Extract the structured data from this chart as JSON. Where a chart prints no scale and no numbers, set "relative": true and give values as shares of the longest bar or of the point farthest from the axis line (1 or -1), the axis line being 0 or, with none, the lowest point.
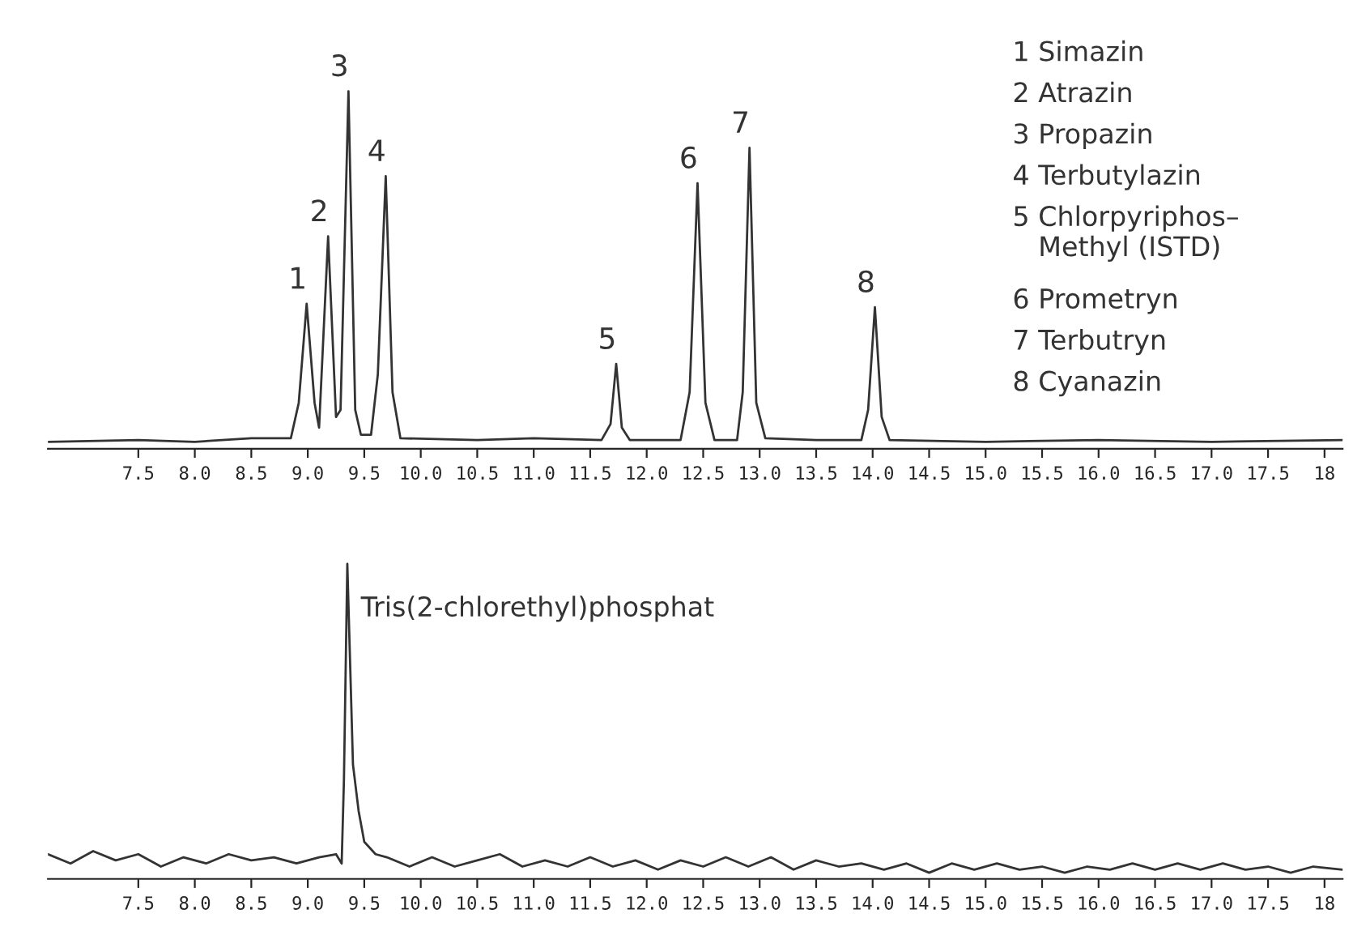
{
  "chart_data": [
    {
      "type": "line",
      "relative": true,
      "grid": false,
      "legend": false,
      "marker": "none",
      "line_style": "solid",
      "tick_labels": "x",
      "xlim": [
        6.7,
        18.16
      ],
      "xticks": [
        7.5,
        {
          "value": 8,
          "label": "8.0"
        },
        8.5,
        {
          "value": 9,
          "label": "9.0"
        },
        9.5,
        {
          "value": 10,
          "label": "10.0"
        },
        10.5,
        {
          "value": 11,
          "label": "11.0"
        },
        11.5,
        {
          "value": 12,
          "label": "12.0"
        },
        12.5,
        {
          "value": 13,
          "label": "13.0"
        },
        13.5,
        {
          "value": 14,
          "label": "14.0"
        },
        14.5,
        {
          "value": 15,
          "label": "15.0"
        },
        15.5,
        {
          "value": 16,
          "label": "16.0"
        },
        16.5,
        {
          "value": 17,
          "label": "17.0"
        },
        17.5,
        18
      ],
      "series": [
        {
          "color": "#333333",
          "x": [
            6.7,
            7.5,
            8.0,
            8.5,
            8.85,
            8.92,
            8.99,
            9.06,
            9.1,
            9.18,
            9.25,
            9.29,
            9.36,
            9.42,
            9.47,
            9.56,
            9.62,
            9.69,
            9.75,
            9.82,
            10.5,
            11.0,
            11.6,
            11.68,
            11.73,
            11.78,
            11.85,
            12.3,
            12.38,
            12.45,
            12.52,
            12.6,
            12.8,
            12.85,
            12.91,
            12.97,
            13.05,
            13.5,
            13.9,
            13.96,
            14.02,
            14.08,
            14.15,
            15.0,
            16.0,
            17.0,
            18.16
          ],
          "values": [
            0.01,
            0.015,
            0.01,
            0.02,
            0.02,
            0.12,
            0.4,
            0.12,
            0.05,
            0.59,
            0.08,
            0.1,
            1.0,
            0.1,
            0.03,
            0.03,
            0.2,
            0.76,
            0.15,
            0.02,
            0.015,
            0.02,
            0.015,
            0.06,
            0.23,
            0.05,
            0.015,
            0.015,
            0.15,
            0.74,
            0.12,
            0.015,
            0.015,
            0.15,
            0.84,
            0.12,
            0.02,
            0.015,
            0.015,
            0.1,
            0.39,
            0.08,
            0.015,
            0.01,
            0.015,
            0.01,
            0.015
          ]
        }
      ],
      "annotations": [
        {
          "text": "1",
          "x": 8.99,
          "y": 0.4
        },
        {
          "text": "2",
          "x": 9.18,
          "y": 0.59
        },
        {
          "text": "3",
          "x": 9.36,
          "y": 1.0
        },
        {
          "text": "4",
          "x": 9.69,
          "y": 0.76
        },
        {
          "text": "5",
          "x": 11.73,
          "y": 0.23
        },
        {
          "text": "6",
          "x": 12.45,
          "y": 0.74
        },
        {
          "text": "7",
          "x": 12.91,
          "y": 0.84
        },
        {
          "text": "8",
          "x": 14.02,
          "y": 0.39
        },
        "1 Simazin",
        "2 Atrazin",
        "3 Propazin",
        "4 Terbutylazin",
        "5 Chlorpyriphos–\n   Methyl (ISTD)",
        "6 Prometryn",
        "7 Terbutryn",
        "8 Cyanazin"
      ]
    },
    {
      "type": "line",
      "relative": true,
      "grid": false,
      "legend": false,
      "marker": "none",
      "line_style": "solid",
      "tick_labels": "x",
      "xlim": [
        6.7,
        18.16
      ],
      "xticks": [
        7.5,
        {
          "value": 8,
          "label": "8.0"
        },
        8.5,
        {
          "value": 9,
          "label": "9.0"
        },
        9.5,
        {
          "value": 10,
          "label": "10.0"
        },
        10.5,
        {
          "value": 11,
          "label": "11.0"
        },
        11.5,
        {
          "value": 12,
          "label": "12.0"
        },
        12.5,
        {
          "value": 13,
          "label": "13.0"
        },
        13.5,
        {
          "value": 14,
          "label": "14.0"
        },
        14.5,
        {
          "value": 15,
          "label": "15.0"
        },
        15.5,
        {
          "value": 16,
          "label": "16.0"
        },
        16.5,
        {
          "value": 17,
          "label": "17.0"
        },
        17.5,
        18
      ],
      "series": [
        {
          "color": "#333333",
          "x": [
            6.7,
            6.9,
            7.1,
            7.3,
            7.5,
            7.7,
            7.9,
            8.1,
            8.3,
            8.5,
            8.7,
            8.9,
            9.1,
            9.25,
            9.3,
            9.32,
            9.35,
            9.4,
            9.45,
            9.5,
            9.6,
            9.7,
            9.9,
            10.1,
            10.3,
            10.5,
            10.7,
            10.9,
            11.1,
            11.3,
            11.5,
            11.7,
            11.9,
            12.1,
            12.3,
            12.5,
            12.7,
            12.9,
            13.1,
            13.3,
            13.5,
            13.7,
            13.9,
            14.1,
            14.3,
            14.5,
            14.7,
            14.9,
            15.1,
            15.3,
            15.5,
            15.7,
            15.9,
            16.1,
            16.3,
            16.5,
            16.7,
            16.9,
            17.1,
            17.3,
            17.5,
            17.7,
            17.9,
            18.16
          ],
          "values": [
            0.06,
            0.03,
            0.07,
            0.04,
            0.06,
            0.02,
            0.05,
            0.03,
            0.06,
            0.04,
            0.05,
            0.03,
            0.05,
            0.06,
            0.03,
            0.3,
            1.0,
            0.35,
            0.2,
            0.1,
            0.06,
            0.05,
            0.02,
            0.05,
            0.02,
            0.04,
            0.06,
            0.02,
            0.04,
            0.02,
            0.05,
            0.02,
            0.04,
            0.01,
            0.04,
            0.02,
            0.05,
            0.02,
            0.05,
            0.01,
            0.04,
            0.02,
            0.03,
            0.01,
            0.03,
            0.0,
            0.03,
            0.01,
            0.03,
            0.01,
            0.02,
            0.0,
            0.02,
            0.01,
            0.03,
            0.01,
            0.03,
            0.01,
            0.03,
            0.01,
            0.02,
            0.0,
            0.02,
            0.01
          ]
        }
      ],
      "annotations": [
        {
          "text": "Tris(2-chlorethyl)phosphat",
          "x": 9.35,
          "y": 1.0
        }
      ]
    }
  ]
}
